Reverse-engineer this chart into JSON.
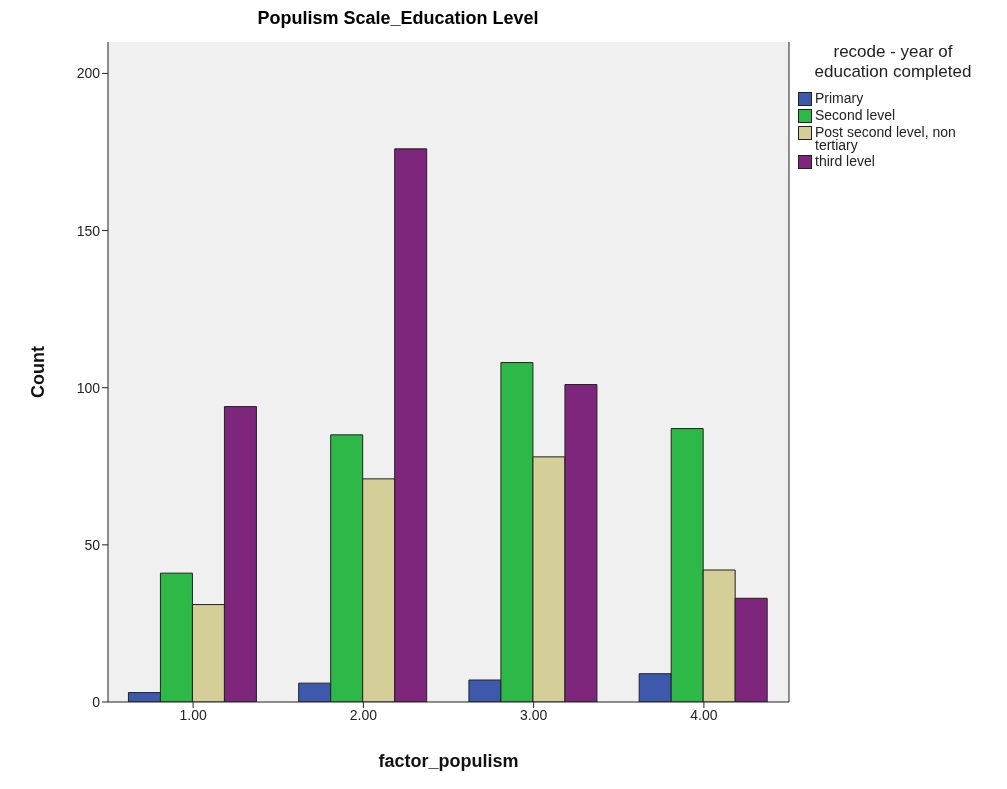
{
  "chart_data": {
    "type": "bar",
    "title": "Populism Scale_Education Level",
    "xlabel": "factor_populism",
    "ylabel": "Count",
    "legend_title": "recode - year of education completed",
    "categories": [
      "1.00",
      "2.00",
      "3.00",
      "4.00"
    ],
    "series": [
      {
        "name": "Primary",
        "color": "#3e58ac",
        "values": [
          3,
          6,
          7,
          9
        ]
      },
      {
        "name": "Second level",
        "color": "#2eb848",
        "values": [
          41,
          85,
          108,
          87
        ]
      },
      {
        "name": "Post second level, non tertiary",
        "color": "#d4ce99",
        "values": [
          31,
          71,
          78,
          42
        ]
      },
      {
        "name": "third level",
        "color": "#7e267b",
        "values": [
          94,
          176,
          101,
          33
        ]
      }
    ],
    "ylim": [
      0,
      210
    ],
    "yticks": [
      0,
      50,
      100,
      150,
      200
    ],
    "legend": "top right"
  }
}
